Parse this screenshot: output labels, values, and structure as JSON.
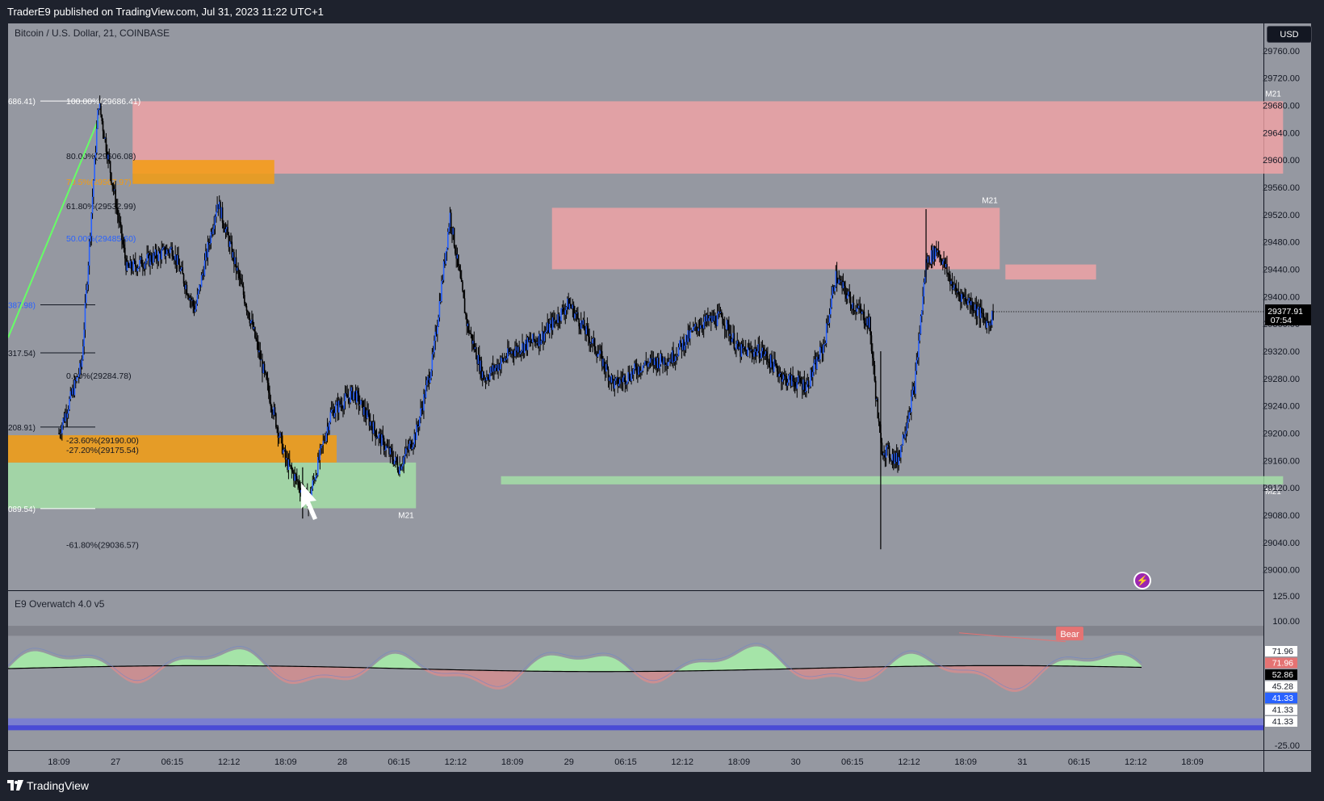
{
  "header": {
    "publish_line": "TraderE9 published on TradingView.com, Jul 31, 2023 11:22 UTC+1"
  },
  "chart_header": {
    "symbol_line": "Bitcoin / U.S. Dollar, 21, COINBASE",
    "currency_button": "USD"
  },
  "footer": {
    "brand": "TradingView"
  },
  "indicator": {
    "title": "E9 Overwatch 4.0 v5",
    "bear_label": "Bear",
    "flash_icon": "lightning-icon"
  },
  "colors": {
    "background": "#1e222d",
    "pane": "#9598a1",
    "supply_zone": "#f4a4a6",
    "demand_zone": "#a5e4a8",
    "fib_zone": "#f39c12",
    "candle_up": "#2962ff",
    "candle_down": "#000000",
    "price_tag": "#000000"
  },
  "chart_data": [
    {
      "type": "candlestick",
      "title": "Bitcoin / U.S. Dollar, 21, COINBASE",
      "timeframe": "21",
      "currency": "USD",
      "x_ticks": [
        "18:09",
        "27",
        "06:15",
        "12:12",
        "18:09",
        "28",
        "06:15",
        "12:12",
        "18:09",
        "29",
        "06:15",
        "12:12",
        "18:09",
        "30",
        "06:15",
        "12:12",
        "18:09",
        "31",
        "06:15",
        "12:12",
        "18:09"
      ],
      "y_ticks": [
        29760,
        29720,
        29680,
        29640,
        29600,
        29560,
        29520,
        29480,
        29440,
        29400,
        29360,
        29320,
        29280,
        29240,
        29200,
        29160,
        29120,
        29080,
        29040,
        29000
      ],
      "ylim": [
        28970,
        29800
      ],
      "last_price": 29377.91,
      "last_price_label": "29377.91",
      "countdown": "07:54",
      "price_path_anchors": [
        {
          "x": 0,
          "y": 29200
        },
        {
          "x": 0.4,
          "y": 29300
        },
        {
          "x": 0.7,
          "y": 29686
        },
        {
          "x": 1.2,
          "y": 29440
        },
        {
          "x": 2.0,
          "y": 29470
        },
        {
          "x": 2.4,
          "y": 29380
        },
        {
          "x": 2.8,
          "y": 29540
        },
        {
          "x": 3.4,
          "y": 29360
        },
        {
          "x": 4.0,
          "y": 29160
        },
        {
          "x": 4.4,
          "y": 29100
        },
        {
          "x": 4.8,
          "y": 29230
        },
        {
          "x": 5.2,
          "y": 29260
        },
        {
          "x": 5.6,
          "y": 29200
        },
        {
          "x": 6.0,
          "y": 29150
        },
        {
          "x": 6.3,
          "y": 29200
        },
        {
          "x": 6.6,
          "y": 29310
        },
        {
          "x": 6.9,
          "y": 29520
        },
        {
          "x": 7.2,
          "y": 29360
        },
        {
          "x": 7.5,
          "y": 29280
        },
        {
          "x": 8.0,
          "y": 29320
        },
        {
          "x": 8.5,
          "y": 29340
        },
        {
          "x": 9.0,
          "y": 29390
        },
        {
          "x": 9.5,
          "y": 29320
        },
        {
          "x": 9.8,
          "y": 29270
        },
        {
          "x": 10.3,
          "y": 29300
        },
        {
          "x": 10.8,
          "y": 29310
        },
        {
          "x": 11.3,
          "y": 29360
        },
        {
          "x": 11.7,
          "y": 29370
        },
        {
          "x": 12.0,
          "y": 29320
        },
        {
          "x": 12.4,
          "y": 29320
        },
        {
          "x": 12.8,
          "y": 29280
        },
        {
          "x": 13.2,
          "y": 29270
        },
        {
          "x": 13.5,
          "y": 29330
        },
        {
          "x": 13.7,
          "y": 29430
        },
        {
          "x": 14.0,
          "y": 29390
        },
        {
          "x": 14.3,
          "y": 29360
        },
        {
          "x": 14.5,
          "y": 29180
        },
        {
          "x": 14.8,
          "y": 29160
        },
        {
          "x": 15.1,
          "y": 29270
        },
        {
          "x": 15.3,
          "y": 29450
        },
        {
          "x": 15.5,
          "y": 29470
        },
        {
          "x": 15.8,
          "y": 29410
        },
        {
          "x": 16.1,
          "y": 29390
        },
        {
          "x": 16.4,
          "y": 29360
        },
        {
          "x": 16.5,
          "y": 29378
        }
      ],
      "zones": [
        {
          "kind": "supply",
          "label": "M21",
          "from_x": 1.3,
          "to_x": 21.6,
          "low": 29580,
          "high": 29686
        },
        {
          "kind": "supply",
          "label": "M21",
          "from_x": 8.7,
          "to_x": 16.6,
          "low": 29440,
          "high": 29530
        },
        {
          "kind": "supply",
          "label": "",
          "from_x": 16.7,
          "to_x": 18.3,
          "low": 29425,
          "high": 29447
        },
        {
          "kind": "demand",
          "label": "M21",
          "from_x": 0,
          "to_x": 6.3,
          "low": 29090,
          "high": 29157
        },
        {
          "kind": "demand",
          "label": "M21",
          "from_x": 7.8,
          "to_x": 21.6,
          "low": 29125,
          "high": 29137
        },
        {
          "kind": "fib",
          "label": "",
          "from_x": 1.3,
          "to_x": 3.8,
          "low": 29565,
          "high": 29600
        },
        {
          "kind": "fib",
          "label": "",
          "from_x": 0,
          "to_x": 4.9,
          "low": 29157,
          "high": 29197
        }
      ],
      "fib_levels": [
        {
          "label": "100.00%(29686.41)",
          "value": 29686.41
        },
        {
          "label": "80.00%(29606.08)",
          "value": 29606.08
        },
        {
          "label": "70.5%(29567.97)",
          "value": 29567.97
        },
        {
          "label": "61.80%(29532.99)",
          "value": 29532.99
        },
        {
          "label": "50.00%(29485.60)",
          "value": 29485.6
        },
        {
          "label": "0.00%(29284.78)",
          "value": 29284.78
        },
        {
          "label": "-23.60%(29190.00)",
          "value": 29190.0
        },
        {
          "label": "-27.20%(29175.54)",
          "value": 29175.54
        },
        {
          "label": "-61.80%(29036.57)",
          "value": 29036.57
        }
      ],
      "left_cut_labels": [
        "686.41)",
        "387.98)",
        "317.54)",
        "208.91)",
        "089.54)"
      ]
    },
    {
      "type": "area",
      "title": "E9 Overwatch 4.0 v5",
      "y_ticks": [
        125.0,
        100.0,
        -25.0
      ],
      "ylim": [
        -30,
        130
      ],
      "value_tags": [
        "71.96",
        "71.96",
        "52.86",
        "45.28",
        "41.33",
        "41.33",
        "41.33"
      ],
      "bear_label": "Bear",
      "bands": [
        {
          "from": 85,
          "to": 95
        },
        {
          "from": -5,
          "to": 2
        },
        {
          "from": -10,
          "to": -5
        }
      ]
    }
  ]
}
